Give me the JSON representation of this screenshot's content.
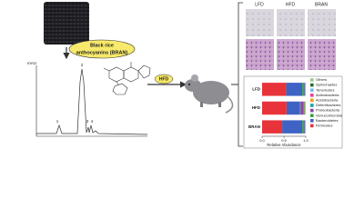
{
  "compound": {
    "label": [
      "Black rice",
      "anthocyanins (BRAN)"
    ]
  },
  "chromatogram": {
    "y_label": "mAU",
    "peaks": [
      "1",
      "2",
      "3",
      "4"
    ]
  },
  "treatment": "HFD",
  "histology": {
    "columns": [
      "LFD",
      "HFD",
      "BRAN"
    ]
  },
  "chart_data": {
    "type": "bar",
    "orientation": "horizontal",
    "stacked": true,
    "categories": [
      "LFD",
      "HFD",
      "BRAN"
    ],
    "series": [
      {
        "name": "Firmicutes",
        "color": "#e8333a",
        "values": [
          0.55,
          0.56,
          0.46
        ]
      },
      {
        "name": "Bacteroidetes",
        "color": "#3f63c4",
        "values": [
          0.37,
          0.3,
          0.46
        ]
      },
      {
        "name": "Verrucomicrobia",
        "color": "#3aa14a",
        "values": [
          0.03,
          0.02,
          0.03
        ]
      },
      {
        "name": "Proteobacteria",
        "color": "#8e44ad",
        "values": [
          0.02,
          0.06,
          0.02
        ]
      },
      {
        "name": "Deferribacteres",
        "color": "#1aa3a3",
        "values": [
          0.01,
          0.03,
          0.01
        ]
      },
      {
        "name": "Acidobacteria",
        "color": "#f39c12",
        "values": [
          0.005,
          0.01,
          0.005
        ]
      },
      {
        "name": "Actinobacteria",
        "color": "#e84393",
        "values": [
          0.005,
          0.005,
          0.005
        ]
      },
      {
        "name": "Tenericutes",
        "color": "#74b9ff",
        "values": [
          0.003,
          0.005,
          0.003
        ]
      },
      {
        "name": "Spirochaetes",
        "color": "#2d6a2d",
        "values": [
          0.003,
          0.003,
          0.003
        ]
      },
      {
        "name": "Others",
        "color": "#a3c586",
        "values": [
          0.004,
          0.007,
          0.004
        ]
      }
    ],
    "xlim": [
      0,
      1
    ],
    "xticks": [
      {
        "value": 0,
        "label": "0.0"
      },
      {
        "value": 0.5,
        "label": "0.5"
      },
      {
        "value": 1,
        "label": "1.0"
      }
    ],
    "x_label": "Relative Abundance"
  }
}
